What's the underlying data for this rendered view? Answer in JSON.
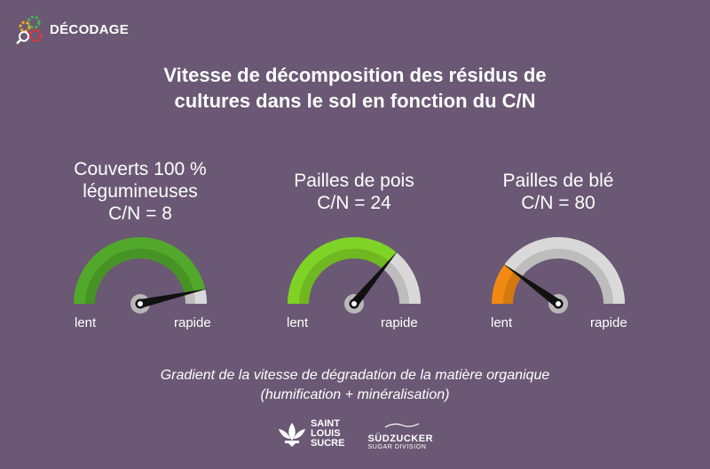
{
  "brand": {
    "label": "DÉCODAGE"
  },
  "title": {
    "line1": "Vitesse de décomposition des résidus de",
    "line2": "cultures dans le sol en fonction du C/N"
  },
  "gauges": [
    {
      "name_line1": "Couverts 100 %",
      "name_line2": "légumineuses",
      "cn": "C/N = 8",
      "level": 0.93,
      "fill_color": "#52a82b",
      "left": "lent",
      "right": "rapide"
    },
    {
      "name_line1": "",
      "name_line2": "Pailles de pois",
      "cn": "C/N = 24",
      "level": 0.72,
      "fill_color": "#7fd226",
      "left": "lent",
      "right": "rapide"
    },
    {
      "name_line1": "",
      "name_line2": "Pailles de blé",
      "cn": "C/N = 80",
      "level": 0.2,
      "fill_color": "#f28a12",
      "left": "lent",
      "right": "rapide"
    }
  ],
  "caption": {
    "line1": "Gradient de la vitesse de dégradation de la matière organique",
    "line2": "(humification + minéralisation)"
  },
  "logos": {
    "sls_line1": "SAINT",
    "sls_line2": "LOUIS",
    "sls_line3": "SUCRE",
    "sz_main": "SÜDZUCKER",
    "sz_sub": "SUGAR DIVISION"
  }
}
